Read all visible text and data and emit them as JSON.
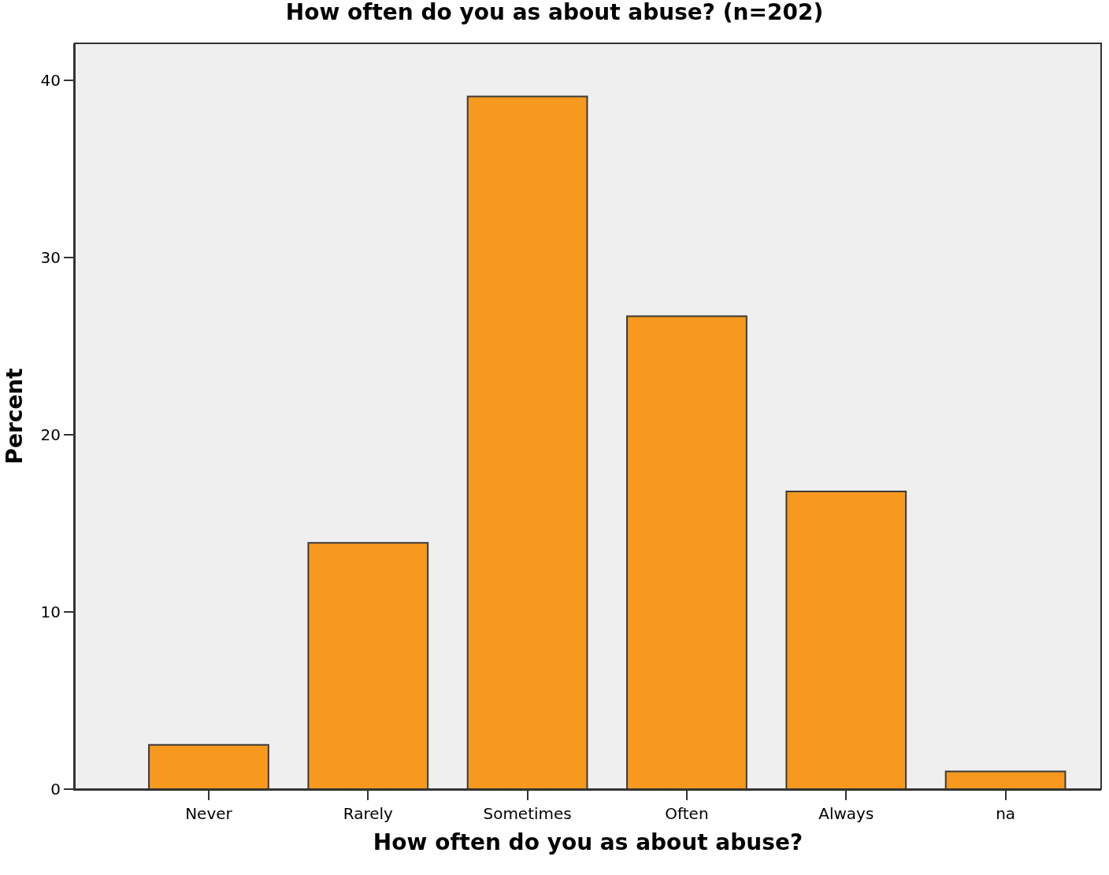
{
  "chart_data": {
    "type": "bar",
    "title": "How often do you as about abuse? (n=202)",
    "xlabel": "How often do you as about abuse?",
    "ylabel": "Percent",
    "categories": [
      "Never",
      "Rarely",
      "Sometimes",
      "Often",
      "Always",
      "na"
    ],
    "values": [
      2.5,
      13.9,
      39.1,
      26.7,
      16.8,
      1.0
    ],
    "color": "#f7991f",
    "ylim": [
      0,
      42.1
    ],
    "yticks": [
      0,
      10,
      20,
      30,
      40
    ],
    "grid": false
  }
}
